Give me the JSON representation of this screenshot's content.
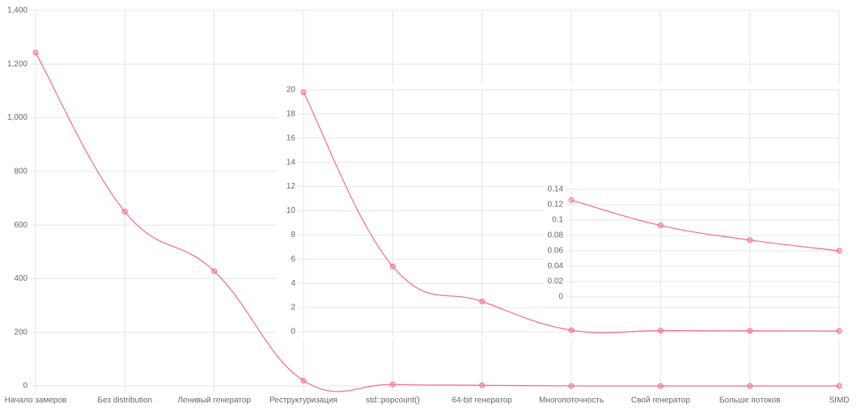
{
  "chart_data": [
    {
      "type": "line",
      "categories": [
        "Начало замеров",
        "Без distribution",
        "Ленивый генератор",
        "Реструктуризация",
        "std::popcount()",
        "64-bit генератор",
        "Многопоточность",
        "Свой генератор",
        "Больше потоков",
        "SIMD"
      ],
      "values": [
        1243,
        650,
        428,
        19.8,
        5.4,
        2.5,
        0.126,
        0.093,
        0.074,
        0.06
      ],
      "color": "#f26b86",
      "ylim": [
        0,
        1400
      ],
      "yticks": [
        0,
        200,
        400,
        600,
        800,
        {
          "value": 1000,
          "label": "1,000"
        },
        {
          "value": 1200,
          "label": "1,200"
        },
        {
          "value": 1400,
          "label": "1,400"
        }
      ],
      "grid": true
    },
    {
      "type": "line",
      "categories": [
        null,
        null,
        null,
        null,
        null,
        null,
        null
      ],
      "values": [
        19.8,
        5.4,
        2.5,
        0.126,
        0.093,
        0.074,
        0.06
      ],
      "color": "#f26b86",
      "ylim": [
        0,
        20
      ],
      "yticks": [
        0,
        2,
        4,
        6,
        8,
        10,
        12,
        14,
        16,
        18,
        20
      ],
      "grid": true
    },
    {
      "type": "line",
      "categories": [
        null,
        null,
        null,
        null
      ],
      "values": [
        0.126,
        0.093,
        0.074,
        0.06
      ],
      "color": "#f26b86",
      "ylim": [
        0,
        0.14
      ],
      "yticks": [
        0,
        0.02,
        0.04,
        0.06,
        0.08,
        0.1,
        0.12,
        0.14
      ],
      "grid": true
    }
  ]
}
